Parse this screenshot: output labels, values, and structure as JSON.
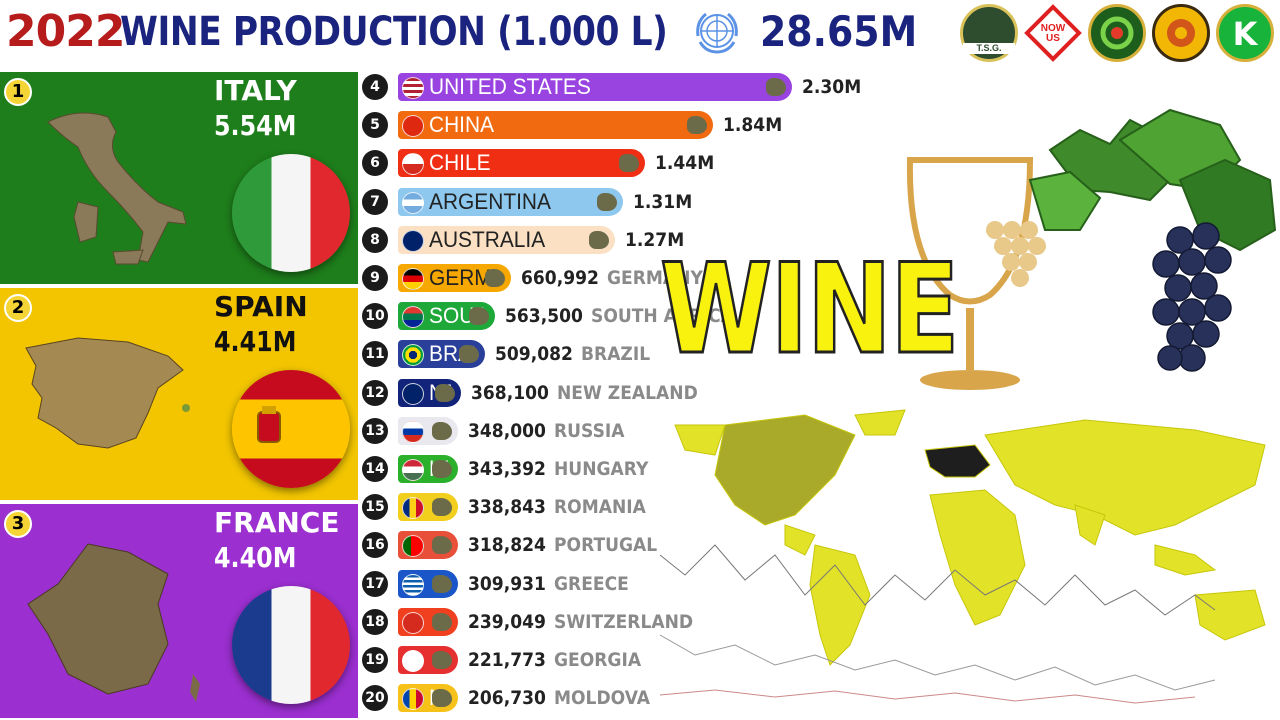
{
  "header": {
    "year": "2022",
    "title": "WINE PRODUCTION (1.000 L)",
    "total": "28.65M",
    "un_icon": "un-emblem-icon",
    "logos": [
      {
        "name": "tsg-logo",
        "text": "T.S.G.",
        "bg": "#2e4d2e"
      },
      {
        "name": "now-us-logo",
        "text": "NOW US",
        "bg": "#ffffff"
      },
      {
        "name": "green-swirl-logo",
        "text": "",
        "bg": "#3aa02a"
      },
      {
        "name": "yellow-seal-logo",
        "text": "",
        "bg": "#f2b705"
      },
      {
        "name": "k-logo",
        "text": "K",
        "bg": "#17b33a"
      }
    ]
  },
  "podium": [
    {
      "rank": "1",
      "name": "ITALY",
      "value": "5.54M",
      "bg": "#1e7e1b",
      "text_color": "#ffffff",
      "flag": "italy-flag-icon"
    },
    {
      "rank": "2",
      "name": "SPAIN",
      "value": "4.41M",
      "bg": "#f2c500",
      "text_color": "#111111",
      "flag": "spain-flag-icon"
    },
    {
      "rank": "3",
      "name": "FRANCE",
      "value": "4.40M",
      "bg": "#9b2fd0",
      "text_color": "#ffffff",
      "flag": "france-flag-icon"
    }
  ],
  "chart_data": {
    "type": "bar",
    "title": "WINE PRODUCTION (1.000 L)",
    "subtitle": "2022",
    "total": "28.65M",
    "categories": [
      "ITALY",
      "SPAIN",
      "FRANCE",
      "UNITED STATES",
      "CHINA",
      "CHILE",
      "ARGENTINA",
      "AUSTRALIA",
      "GERMANY",
      "SOUTH AFRICA",
      "BRAZIL",
      "NEW ZEALAND",
      "RUSSIA",
      "HUNGARY",
      "ROMANIA",
      "PORTUGAL",
      "GREECE",
      "SWITZERLAND",
      "GEORGIA",
      "MOLDOVA"
    ],
    "values": [
      5540000,
      4410000,
      4400000,
      2300000,
      1840000,
      1440000,
      1310000,
      1270000,
      660992,
      563500,
      509082,
      368100,
      348000,
      343392,
      338843,
      318824,
      309931,
      239049,
      221773,
      206730
    ]
  },
  "rows": [
    {
      "rank": "4",
      "name": "UNITED STATES",
      "value": "2.30M",
      "frac": 1.0,
      "color": "#9944e0",
      "flag": "usa-flag-icon",
      "inside": "UNITED STATES",
      "outside": ""
    },
    {
      "rank": "5",
      "name": "CHINA",
      "value": "1.84M",
      "frac": 0.8,
      "color": "#f26a10",
      "flag": "china-flag-icon",
      "inside": "CHINA",
      "outside": ""
    },
    {
      "rank": "6",
      "name": "CHILE",
      "value": "1.44M",
      "frac": 0.626,
      "color": "#f02e14",
      "flag": "chile-flag-icon",
      "inside": "CHILE",
      "outside": ""
    },
    {
      "rank": "7",
      "name": "ARGENTINA",
      "value": "1.31M",
      "frac": 0.57,
      "color": "#8ec8ee",
      "flag": "argentina-flag-icon",
      "inside": "ARGENTINA",
      "outside": ""
    },
    {
      "rank": "8",
      "name": "AUSTRALIA",
      "value": "1.27M",
      "frac": 0.552,
      "color": "#fbe0c4",
      "flag": "australia-flag-icon",
      "inside": "AUSTRALIA",
      "outside": ""
    },
    {
      "rank": "9",
      "name": "GERMANY",
      "value": "660,992",
      "frac": 0.287,
      "color": "#f6a800",
      "flag": "germany-flag-icon",
      "inside": "GERMANY",
      "outside": "GERMANY"
    },
    {
      "rank": "10",
      "name": "SOUTH AFRICA",
      "value": "563,500",
      "frac": 0.245,
      "color": "#1fa83a",
      "flag": "south-africa-flag-icon",
      "inside": "SOUTH AFRICA",
      "outside": "SOUTH AFRICA"
    },
    {
      "rank": "11",
      "name": "BRAZIL",
      "value": "509,082",
      "frac": 0.221,
      "color": "#2a3f9a",
      "flag": "brazil-flag-icon",
      "inside": "BRAZIL",
      "outside": "BRAZIL"
    },
    {
      "rank": "12",
      "name": "NEW ZEALAND",
      "value": "368,100",
      "frac": 0.16,
      "color": "#12237a",
      "flag": "new-zealand-flag-icon",
      "inside": "NEW ZEALAND",
      "outside": "NEW ZEALAND"
    },
    {
      "rank": "13",
      "name": "RUSSIA",
      "value": "348,000",
      "frac": 0.151,
      "color": "#e8e8ee",
      "flag": "russia-flag-icon",
      "inside": "",
      "outside": "RUSSIA"
    },
    {
      "rank": "14",
      "name": "HUNGARY",
      "value": "343,392",
      "frac": 0.149,
      "color": "#2bb02b",
      "flag": "hungary-flag-icon",
      "inside": "HUNGARY",
      "outside": "HUNGARY"
    },
    {
      "rank": "15",
      "name": "ROMANIA",
      "value": "338,843",
      "frac": 0.147,
      "color": "#f2cf1c",
      "flag": "romania-flag-icon",
      "inside": "",
      "outside": "ROMANIA"
    },
    {
      "rank": "16",
      "name": "PORTUGAL",
      "value": "318,824",
      "frac": 0.139,
      "color": "#e8503a",
      "flag": "portugal-flag-icon",
      "inside": "",
      "outside": "PORTUGAL"
    },
    {
      "rank": "17",
      "name": "GREECE",
      "value": "309,931",
      "frac": 0.135,
      "color": "#1a56c8",
      "flag": "greece-flag-icon",
      "inside": "",
      "outside": "GREECE"
    },
    {
      "rank": "18",
      "name": "SWITZERLAND",
      "value": "239,049",
      "frac": 0.104,
      "color": "#f04020",
      "flag": "switzerland-flag-icon",
      "inside": "",
      "outside": "SWITZERLAND"
    },
    {
      "rank": "19",
      "name": "GEORGIA",
      "value": "221,773",
      "frac": 0.0964,
      "color": "#e63030",
      "flag": "georgia-flag-icon",
      "inside": "",
      "outside": "GEORGIA"
    },
    {
      "rank": "20",
      "name": "MOLDOVA",
      "value": "206,730",
      "frac": 0.0899,
      "color": "#f6c21a",
      "flag": "moldova-flag-icon",
      "inside": "MOLDOVA",
      "outside": "MOLDOVA"
    }
  ],
  "decor": {
    "wine_word": "WINE",
    "glass_icon": "wine-glass-icon",
    "grapes_icon": "grapes-icon",
    "map_icon": "world-map-icon"
  }
}
